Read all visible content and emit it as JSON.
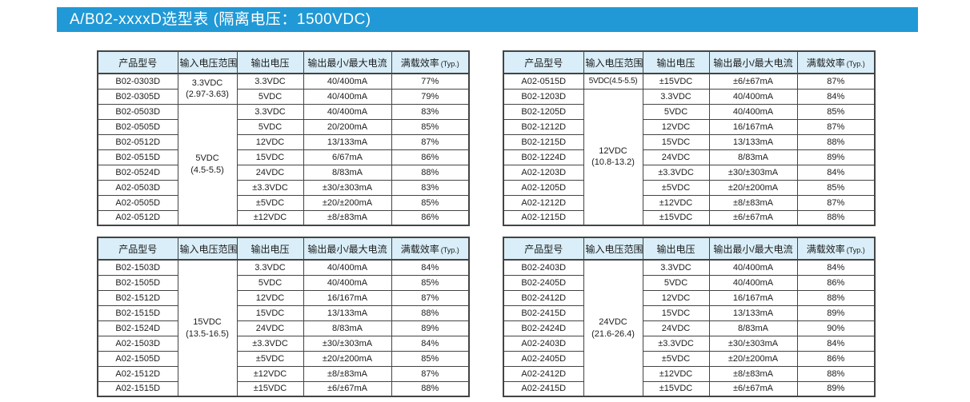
{
  "banner": {
    "title": "A/B02-xxxxD选型表 (隔离电压：1500VDC)"
  },
  "colors": {
    "banner_bg": "#2099d6",
    "banner_text": "#ffffff",
    "header_bg": "#d9eef8",
    "border": "#444444",
    "text": "#1c1c1c"
  },
  "columns": {
    "model": "产品型号",
    "input_range": "输入电压范围",
    "output_voltage": "输出电压",
    "output_current": "输出最小/最大电流",
    "efficiency": "满载效率",
    "efficiency_note": "(Typ.)"
  },
  "tables": [
    {
      "name": "selector-table-top-left",
      "input_groups": [
        {
          "text": "3.3VDC",
          "range": "(2.97-3.63)",
          "span": 2
        },
        {
          "text": "5VDC",
          "range": "(4.5-5.5)",
          "span": 8
        }
      ],
      "rows": [
        [
          "B02-0303D",
          "3.3VDC",
          "40/400mA",
          "77%"
        ],
        [
          "B02-0305D",
          "5VDC",
          "40/400mA",
          "79%"
        ],
        [
          "B02-0503D",
          "3.3VDC",
          "40/400mA",
          "83%"
        ],
        [
          "B02-0505D",
          "5VDC",
          "20/200mA",
          "85%"
        ],
        [
          "B02-0512D",
          "12VDC",
          "13/133mA",
          "87%"
        ],
        [
          "B02-0515D",
          "15VDC",
          "6/67mA",
          "86%"
        ],
        [
          "B02-0524D",
          "24VDC",
          "8/83mA",
          "88%"
        ],
        [
          "A02-0503D",
          "±3.3VDC",
          "±30/±303mA",
          "83%"
        ],
        [
          "A02-0505D",
          "±5VDC",
          "±20/±200mA",
          "85%"
        ],
        [
          "A02-0512D",
          "±12VDC",
          "±8/±83mA",
          "86%"
        ]
      ]
    },
    {
      "name": "selector-table-top-right",
      "input_groups": [
        {
          "text": "5VDC(4.5-5.5)",
          "range": "",
          "span": 1
        },
        {
          "text": "12VDC",
          "range": "(10.8-13.2)",
          "span": 9
        }
      ],
      "rows": [
        [
          "A02-0515D",
          "±15VDC",
          "±6/±67mA",
          "87%"
        ],
        [
          "B02-1203D",
          "3.3VDC",
          "40/400mA",
          "84%"
        ],
        [
          "B02-1205D",
          "5VDC",
          "40/400mA",
          "85%"
        ],
        [
          "B02-1212D",
          "12VDC",
          "16/167mA",
          "87%"
        ],
        [
          "B02-1215D",
          "15VDC",
          "13/133mA",
          "88%"
        ],
        [
          "B02-1224D",
          "24VDC",
          "8/83mA",
          "89%"
        ],
        [
          "A02-1203D",
          "±3.3VDC",
          "±30/±303mA",
          "84%"
        ],
        [
          "A02-1205D",
          "±5VDC",
          "±20/±200mA",
          "85%"
        ],
        [
          "A02-1212D",
          "±12VDC",
          "±8/±83mA",
          "87%"
        ],
        [
          "A02-1215D",
          "±15VDC",
          "±6/±67mA",
          "88%"
        ]
      ]
    },
    {
      "name": "selector-table-bottom-left",
      "input_groups": [
        {
          "text": "15VDC",
          "range": "(13.5-16.5)",
          "span": 9
        }
      ],
      "rows": [
        [
          "B02-1503D",
          "3.3VDC",
          "40/400mA",
          "84%"
        ],
        [
          "B02-1505D",
          "5VDC",
          "40/400mA",
          "85%"
        ],
        [
          "B02-1512D",
          "12VDC",
          "16/167mA",
          "87%"
        ],
        [
          "B02-1515D",
          "15VDC",
          "13/133mA",
          "88%"
        ],
        [
          "B02-1524D",
          "24VDC",
          "8/83mA",
          "89%"
        ],
        [
          "A02-1503D",
          "±3.3VDC",
          "±30/±303mA",
          "84%"
        ],
        [
          "A02-1505D",
          "±5VDC",
          "±20/±200mA",
          "85%"
        ],
        [
          "A02-1512D",
          "±12VDC",
          "±8/±83mA",
          "87%"
        ],
        [
          "A02-1515D",
          "±15VDC",
          "±6/±67mA",
          "88%"
        ]
      ]
    },
    {
      "name": "selector-table-bottom-right",
      "input_groups": [
        {
          "text": "24VDC",
          "range": "(21.6-26.4)",
          "span": 9
        }
      ],
      "rows": [
        [
          "B02-2403D",
          "3.3VDC",
          "40/400mA",
          "84%"
        ],
        [
          "B02-2405D",
          "5VDC",
          "40/400mA",
          "86%"
        ],
        [
          "B02-2412D",
          "12VDC",
          "16/167mA",
          "88%"
        ],
        [
          "B02-2415D",
          "15VDC",
          "13/133mA",
          "89%"
        ],
        [
          "B02-2424D",
          "24VDC",
          "8/83mA",
          "90%"
        ],
        [
          "A02-2403D",
          "±3.3VDC",
          "±30/±303mA",
          "84%"
        ],
        [
          "A02-2405D",
          "±5VDC",
          "±20/±200mA",
          "86%"
        ],
        [
          "A02-2412D",
          "±12VDC",
          "±8/±83mA",
          "88%"
        ],
        [
          "A02-2415D",
          "±15VDC",
          "±6/±67mA",
          "89%"
        ]
      ]
    }
  ]
}
